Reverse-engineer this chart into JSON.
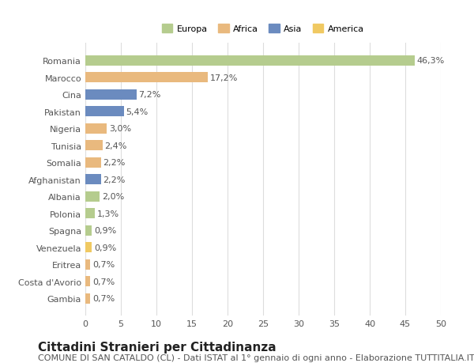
{
  "countries": [
    "Romania",
    "Marocco",
    "Cina",
    "Pakistan",
    "Nigeria",
    "Tunisia",
    "Somalia",
    "Afghanistan",
    "Albania",
    "Polonia",
    "Spagna",
    "Venezuela",
    "Eritrea",
    "Costa d'Avorio",
    "Gambia"
  ],
  "values": [
    46.3,
    17.2,
    7.2,
    5.4,
    3.0,
    2.4,
    2.2,
    2.2,
    2.0,
    1.3,
    0.9,
    0.9,
    0.7,
    0.7,
    0.7
  ],
  "labels": [
    "46,3%",
    "17,2%",
    "7,2%",
    "5,4%",
    "3,0%",
    "2,4%",
    "2,2%",
    "2,2%",
    "2,0%",
    "1,3%",
    "0,9%",
    "0,9%",
    "0,7%",
    "0,7%",
    "0,7%"
  ],
  "continents": [
    "Europa",
    "Africa",
    "Asia",
    "Asia",
    "Africa",
    "Africa",
    "Africa",
    "Asia",
    "Europa",
    "Europa",
    "Europa",
    "America",
    "Africa",
    "Africa",
    "Africa"
  ],
  "colors": {
    "Europa": "#b5cc8e",
    "Africa": "#e9b97e",
    "Asia": "#6b8bbf",
    "America": "#f0c962"
  },
  "legend_order": [
    "Europa",
    "Africa",
    "Asia",
    "America"
  ],
  "bg_color": "#ffffff",
  "grid_color": "#dddddd",
  "xlim": [
    0,
    50
  ],
  "xticks": [
    0,
    5,
    10,
    15,
    20,
    25,
    30,
    35,
    40,
    45,
    50
  ],
  "title": "Cittadini Stranieri per Cittadinanza",
  "subtitle": "COMUNE DI SAN CATALDO (CL) - Dati ISTAT al 1° gennaio di ogni anno - Elaborazione TUTTITALIA.IT",
  "title_fontsize": 11,
  "subtitle_fontsize": 8,
  "label_fontsize": 8,
  "tick_fontsize": 8,
  "bar_height": 0.6
}
